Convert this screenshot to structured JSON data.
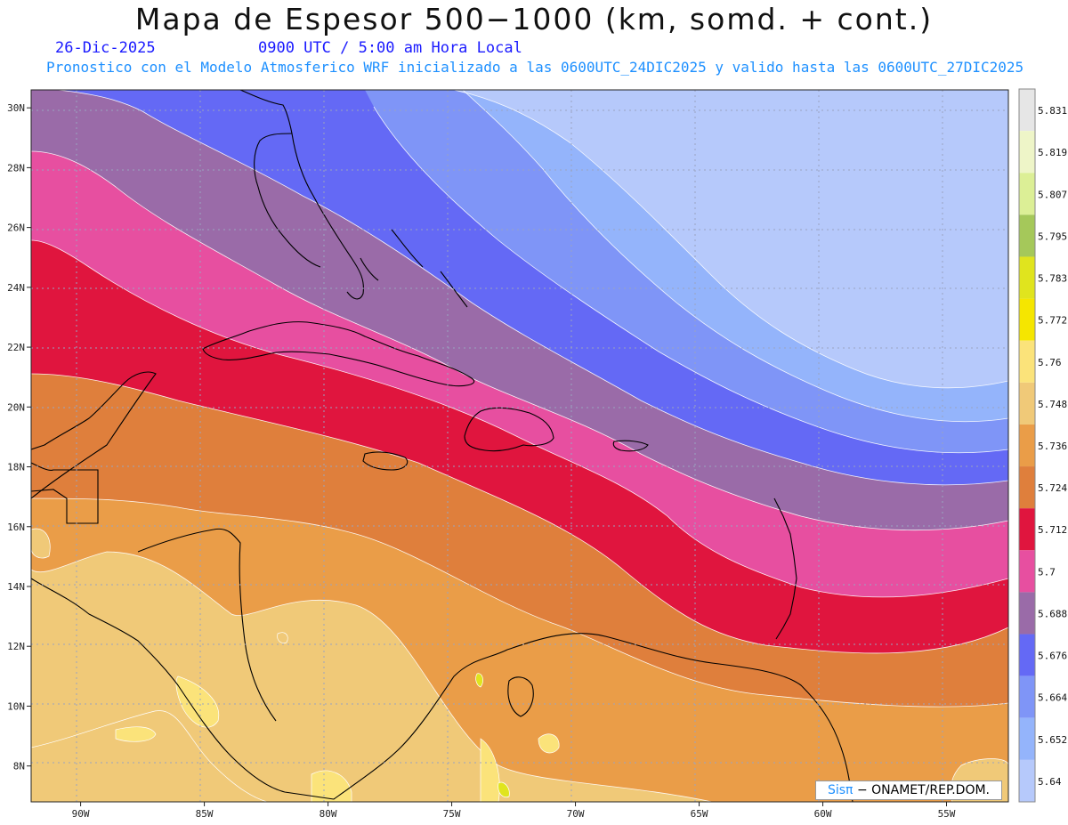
{
  "header": {
    "title": "Mapa de Espesor 500−1000 (km, somd. + cont.)",
    "date": "26-Dic-2025",
    "time": "0900 UTC / 5:00 am Hora Local",
    "info": "Pronostico con el Modelo Atmosferico WRF inicializado a las 0600UTC_24DIC2025 y valido hasta las  0600UTC_27DIC2025"
  },
  "map": {
    "lon_ticks": [
      "90W",
      "85W",
      "80W",
      "75W",
      "70W",
      "65W",
      "60W",
      "55W"
    ],
    "lat_ticks": [
      "30N",
      "28N",
      "26N",
      "24N",
      "22N",
      "20N",
      "18N",
      "16N",
      "14N",
      "12N",
      "10N",
      "8N"
    ],
    "lon_range": [
      -92,
      -52.5
    ],
    "lat_range": [
      6.8,
      30.6
    ]
  },
  "legend": {
    "levels": [
      "5.831",
      "5.819",
      "5.807",
      "5.795",
      "5.783",
      "5.772",
      "5.76",
      "5.748",
      "5.736",
      "5.724",
      "5.712",
      "5.7",
      "5.688",
      "5.676",
      "5.664",
      "5.652",
      "5.64"
    ],
    "colors": [
      "#e6e6e6",
      "#eef5c8",
      "#dcef96",
      "#a5c85a",
      "#e0e41e",
      "#f5e600",
      "#fbe37a",
      "#f0c978",
      "#ea9d48",
      "#df7f3c",
      "#e0153e",
      "#e74fa0",
      "#9a6ba8",
      "#6469f5",
      "#7f95f7",
      "#94b4fb",
      "#b6c9fb"
    ]
  },
  "credit": {
    "sis": "Sisπ",
    "rest": "− ONAMET/REP.DOM."
  }
}
